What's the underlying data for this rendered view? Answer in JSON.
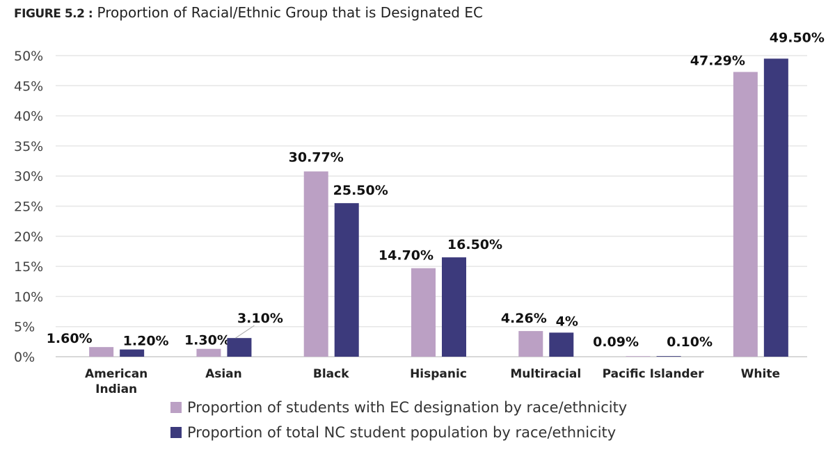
{
  "chart_data": {
    "type": "bar",
    "figure_label": "FIGURE 5.2 :",
    "title": "Proportion of Racial/Ethnic Group that is Designated EC",
    "categories": [
      "American Indian",
      "Asian",
      "Black",
      "Hispanic",
      "Multiracial",
      "Pacific Islander",
      "White"
    ],
    "series": [
      {
        "name": "Proportion of students with EC designation by race/ethnicity",
        "color": "#bba0c4",
        "values": [
          1.6,
          1.3,
          30.77,
          14.7,
          4.26,
          0.09,
          47.29
        ],
        "labels": [
          "1.60%",
          "1.30%",
          "30.77%",
          "14.70%",
          "4.26%",
          "0.09%",
          "47.29%"
        ]
      },
      {
        "name": "Proportion of total NC student population by race/ethnicity",
        "color": "#3c3a7c",
        "values": [
          1.2,
          3.1,
          25.5,
          16.5,
          4,
          0.1,
          49.5
        ],
        "labels": [
          "1.20%",
          "3.10%",
          "25.50%",
          "16.50%",
          "4%",
          "0.10%",
          "49.50%"
        ]
      }
    ],
    "yticks": [
      "0%",
      "5%",
      "10%",
      "15%",
      "20%",
      "25%",
      "30%",
      "35%",
      "40%",
      "45%",
      "50%"
    ],
    "ylim": [
      0,
      50
    ],
    "grid": true,
    "legend_position": "bottom"
  }
}
